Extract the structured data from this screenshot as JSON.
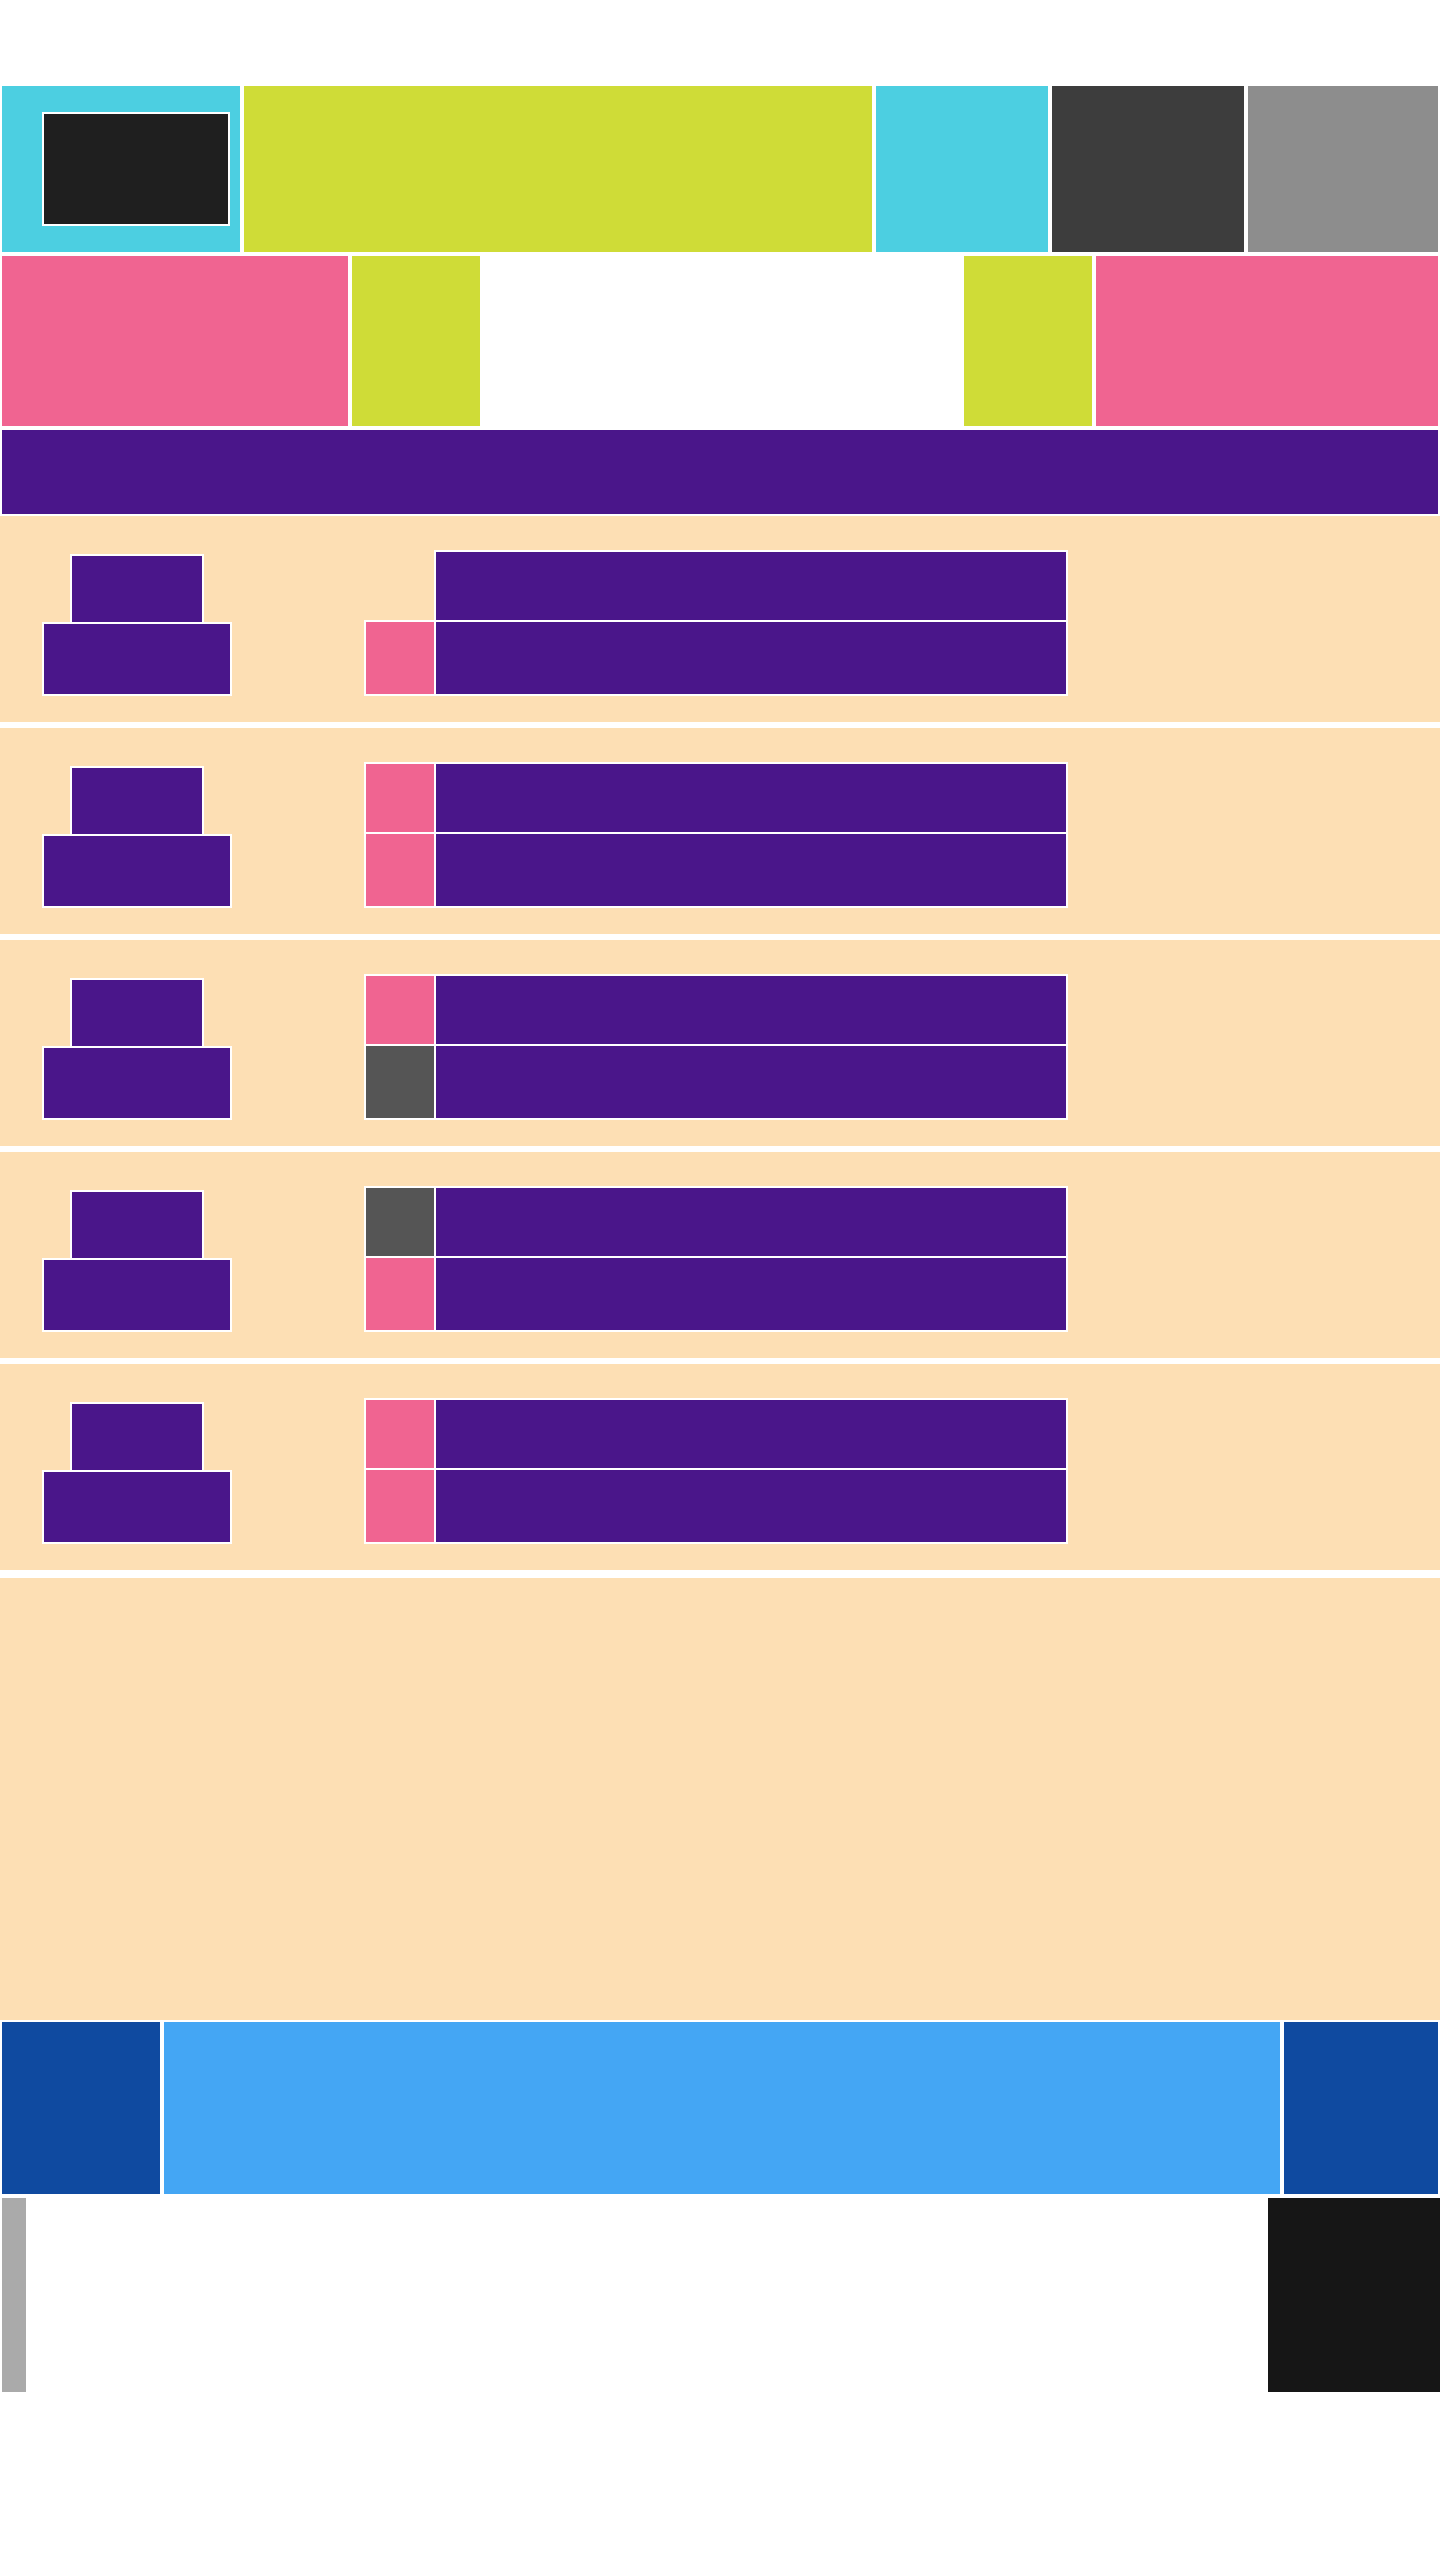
{
  "colors": {
    "cyan": "#4ccfe1",
    "lime": "#cfdc37",
    "charcoal": "#3d3d3d",
    "gray": "#8d8d8d",
    "pink": "#f06491",
    "purple": "#4a168a",
    "peach": "#fddfb4",
    "navy": "#0f4aa0",
    "sky": "#44a6f4",
    "black": "#161616"
  },
  "header": {
    "logo_icon": "app-logo-icon"
  },
  "list": {
    "rows": [
      {
        "marker_1": "none",
        "marker_2": "pink"
      },
      {
        "marker_1": "pink",
        "marker_2": "pink"
      },
      {
        "marker_1": "pink",
        "marker_2": "dark"
      },
      {
        "marker_1": "dark",
        "marker_2": "pink"
      },
      {
        "marker_1": "pink",
        "marker_2": "pink"
      }
    ]
  }
}
